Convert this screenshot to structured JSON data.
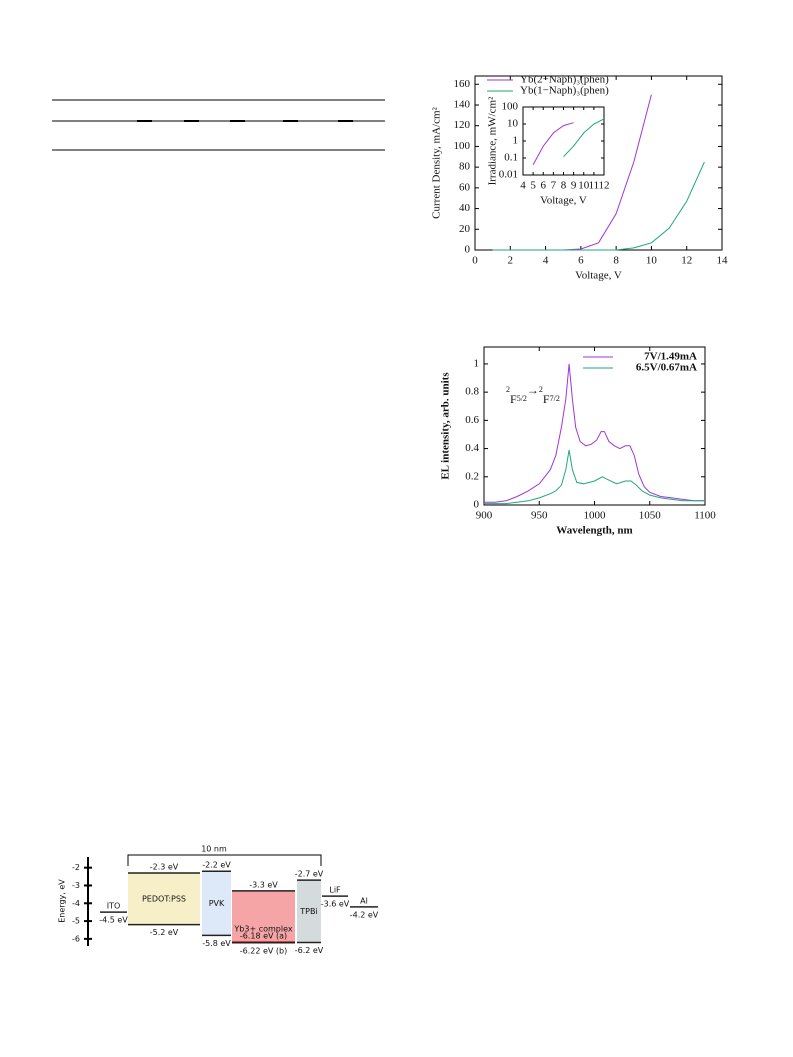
{
  "chart_data": [
    {
      "type": "line",
      "xlabel": "Voltage, V",
      "ylabel": "Current Density, mA/cm²",
      "xlim": [
        0,
        14
      ],
      "xticks": [
        0,
        2,
        4,
        6,
        8,
        10,
        12,
        14
      ],
      "ylim": [
        0,
        168
      ],
      "yticks": [
        0,
        20,
        40,
        60,
        80,
        100,
        120,
        140,
        160
      ],
      "legend": "top left",
      "series": [
        {
          "name": "Yb(2−Naph)₃(phen)",
          "color": "#a235d8",
          "x": [
            1,
            2,
            3,
            4,
            5,
            6,
            7,
            8,
            9,
            10
          ],
          "values": [
            0,
            0,
            0,
            0,
            0,
            1,
            7,
            35,
            85,
            150
          ]
        },
        {
          "name": "Yb(1−Naph)₃(phen)",
          "color": "#22a77a",
          "x": [
            1,
            2,
            3,
            4,
            5,
            6,
            7,
            8,
            9,
            10,
            11,
            12,
            13
          ],
          "values": [
            0,
            0,
            0,
            0,
            0,
            0,
            0,
            0,
            2,
            7,
            21,
            47,
            85
          ]
        }
      ]
    },
    {
      "type": "line",
      "xlabel": "Voltage, V",
      "ylabel": "Irradiance, mW/cm²",
      "log_y": true,
      "xlim": [
        4,
        12
      ],
      "xticks": [
        4,
        5,
        6,
        7,
        8,
        9,
        10,
        11,
        12
      ],
      "ylim": [
        0.01,
        100
      ],
      "yticks": [
        0.01,
        0.1,
        1,
        10,
        100
      ],
      "series": [
        {
          "color": "#a235d8",
          "x": [
            5,
            6,
            7,
            8,
            9
          ],
          "values": [
            0.04,
            0.5,
            3,
            8,
            12
          ]
        },
        {
          "color": "#22a77a",
          "x": [
            8,
            9,
            10,
            11,
            12
          ],
          "values": [
            0.12,
            0.5,
            3,
            10,
            20
          ]
        }
      ]
    },
    {
      "type": "line",
      "xlabel": "Wavelength, nm",
      "ylabel": "EL intensity, arb. units",
      "annotation": [
        "2",
        "F",
        "5/2",
        "→",
        "2",
        "F",
        "7/2"
      ],
      "xlim": [
        900,
        1100
      ],
      "xticks": [
        900,
        950,
        1000,
        1050,
        1100
      ],
      "ylim": [
        0,
        1.12
      ],
      "yticks": [
        0,
        0.2,
        0.4,
        0.6,
        0.8,
        1
      ],
      "legend": "top right",
      "series": [
        {
          "name": "7V/1.49mA",
          "color": "#a235d8",
          "x": [
            900,
            910,
            920,
            930,
            940,
            950,
            955,
            960,
            965,
            970,
            974,
            977,
            980,
            983,
            987,
            992,
            997,
            1002,
            1006,
            1009,
            1013,
            1018,
            1023,
            1028,
            1032,
            1036,
            1040,
            1045,
            1050,
            1060,
            1070,
            1080,
            1090,
            1100
          ],
          "values": [
            0.02,
            0.02,
            0.03,
            0.06,
            0.1,
            0.15,
            0.2,
            0.25,
            0.35,
            0.55,
            0.75,
            1.0,
            0.75,
            0.55,
            0.45,
            0.42,
            0.43,
            0.46,
            0.52,
            0.52,
            0.45,
            0.42,
            0.4,
            0.42,
            0.42,
            0.35,
            0.22,
            0.13,
            0.09,
            0.06,
            0.05,
            0.04,
            0.03,
            0.03
          ]
        },
        {
          "name": "6.5V/0.67mA",
          "color": "#22a77a",
          "x": [
            900,
            910,
            920,
            930,
            940,
            950,
            960,
            965,
            970,
            974,
            977,
            980,
            984,
            990,
            1000,
            1007,
            1012,
            1020,
            1028,
            1033,
            1038,
            1043,
            1050,
            1060,
            1070,
            1080,
            1090,
            1100
          ],
          "values": [
            0.01,
            0.01,
            0.01,
            0.02,
            0.03,
            0.05,
            0.08,
            0.1,
            0.14,
            0.25,
            0.39,
            0.25,
            0.16,
            0.15,
            0.17,
            0.2,
            0.18,
            0.15,
            0.17,
            0.17,
            0.14,
            0.1,
            0.07,
            0.05,
            0.04,
            0.03,
            0.03,
            0.03
          ]
        }
      ]
    }
  ],
  "diagram": {
    "ylabel": "Energy, eV",
    "thickness": "10 nm",
    "ylim": [
      -1.4,
      -6.4
    ],
    "yticks": [
      -2,
      -3,
      -4,
      -5,
      -6
    ],
    "layers": [
      {
        "name": "ITO",
        "levels": [
          {
            "value": -4.5,
            "label": "-4.5 eV"
          }
        ]
      },
      {
        "name": "PEDOT:PSS",
        "color": "#f7efc8",
        "levels": [
          {
            "value": -2.3,
            "label": "-2.3 eV"
          },
          {
            "value": -5.2,
            "label": "-5.2 eV"
          }
        ]
      },
      {
        "name": "PVK",
        "color": "#dde9f8",
        "levels": [
          {
            "value": -2.2,
            "label": "-2.2 eV"
          },
          {
            "value": -5.8,
            "label": "-5.8 eV"
          }
        ]
      },
      {
        "name": "Yb3+ complex",
        "color": "#f5a5a5",
        "levels": [
          {
            "value": -3.3,
            "label": "-3.3 eV"
          },
          {
            "value": -6.18,
            "label": "-6.18 eV (a)"
          },
          {
            "value": -6.22,
            "label": "-6.22 eV (b)"
          }
        ]
      },
      {
        "name": "TPBi",
        "color": "#d4dbdc",
        "levels": [
          {
            "value": -2.7,
            "label": "-2.7 eV"
          },
          {
            "value": -6.2,
            "label": "-6.2 eV"
          }
        ]
      },
      {
        "name": "LiF",
        "levels": [
          {
            "value": -3.6,
            "label": "-3.6 eV"
          }
        ]
      },
      {
        "name": "Al",
        "levels": [
          {
            "value": -4.2,
            "label": "-4.2 eV"
          }
        ]
      }
    ]
  }
}
